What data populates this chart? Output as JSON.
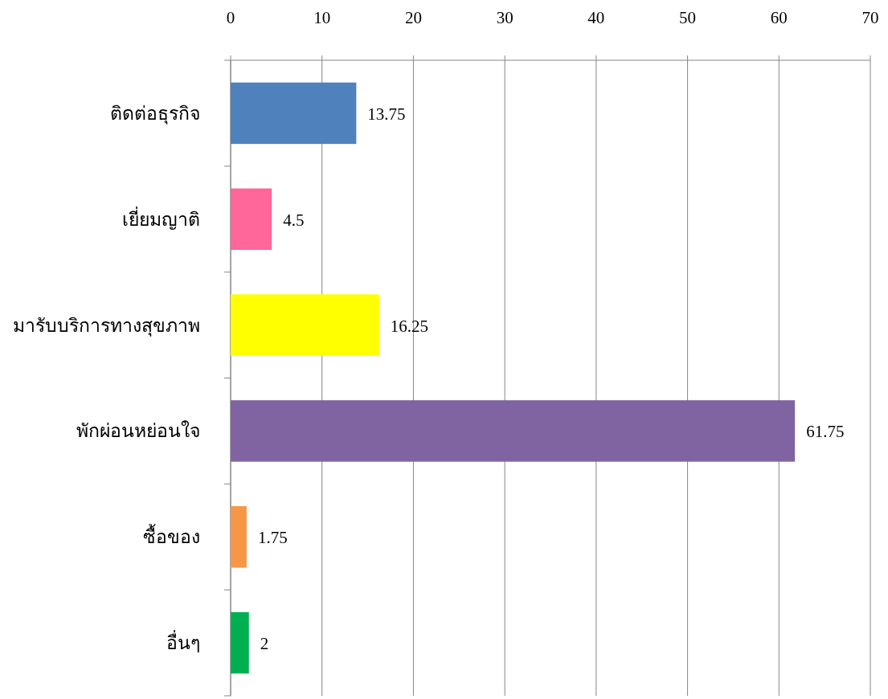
{
  "chart_data": {
    "type": "bar",
    "orientation": "horizontal",
    "categories": [
      "ติดต่อธุรกิจ",
      "เยี่ยมญาติ",
      "มารับบริการทางสุขภาพ",
      "พักผ่อนหย่อนใจ",
      "ซื้อของ",
      "อื่นๆ"
    ],
    "values": [
      13.75,
      4.5,
      16.25,
      61.75,
      1.75,
      2
    ],
    "colors": [
      "#4f81bd",
      "#ff6699",
      "#ffff00",
      "#8064a2",
      "#f79646",
      "#00b050"
    ],
    "xlim": [
      0,
      70
    ],
    "xticks": [
      0,
      10,
      20,
      30,
      40,
      50,
      60,
      70
    ],
    "grid": "x",
    "data_labels": true
  }
}
